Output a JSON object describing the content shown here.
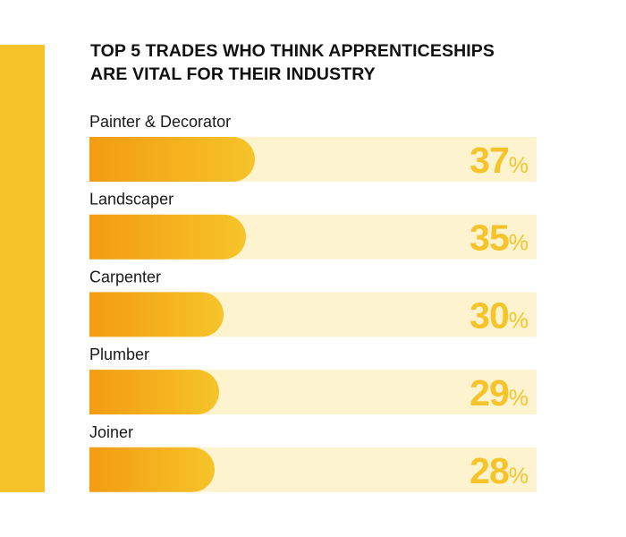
{
  "chart_data": {
    "type": "bar",
    "orientation": "horizontal",
    "title_lines": [
      "TOP 5 TRADES WHO THINK APPRENTICESHIPS",
      "ARE VITAL FOR THEIR INDUSTRY"
    ],
    "categories": [
      "Painter & Decorator",
      "Landscaper",
      "Carpenter",
      "Plumber",
      "Joiner"
    ],
    "values": [
      37,
      35,
      30,
      29,
      28
    ],
    "unit": "%",
    "xlim": [
      0,
      100
    ],
    "grid": false,
    "legend": "none"
  },
  "colors": {
    "track": "#fdf3cf",
    "bar_start": "#f39c12",
    "bar_end": "#f6c42a",
    "value_text": "#f6c42a",
    "accent_stripe": "#f6c42a"
  }
}
